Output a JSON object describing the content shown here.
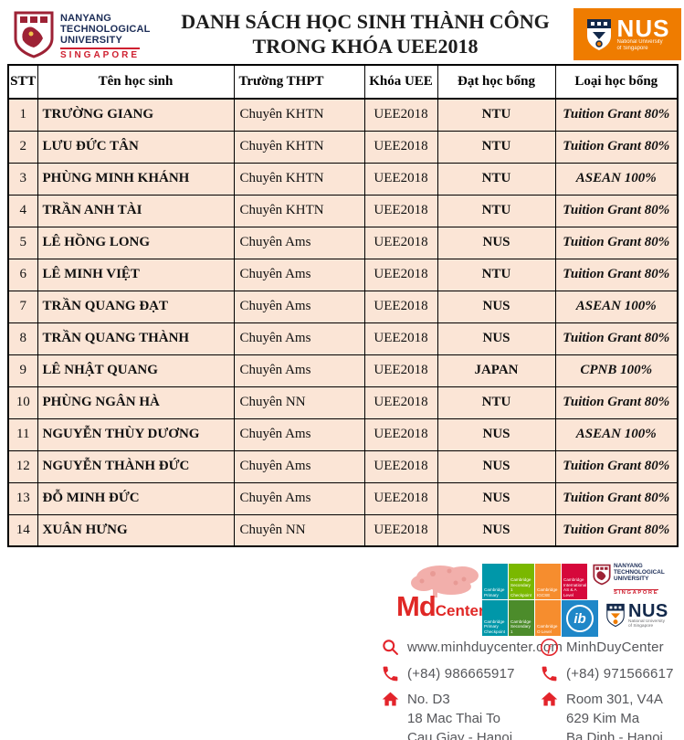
{
  "header": {
    "ntu_logo": {
      "line1": "NANYANG",
      "line2": "TECHNOLOGICAL",
      "line3": "UNIVERSITY",
      "country": "SINGAPORE"
    },
    "title_line1": "DANH SÁCH HỌC SINH THÀNH CÔNG",
    "title_line2": "TRONG KHÓA UEE2018",
    "nus_logo": {
      "acronym": "NUS",
      "subtitle_line1": "National University",
      "subtitle_line2": "of Singapore"
    }
  },
  "table": {
    "columns": [
      "STT",
      "Tên học sinh",
      "Trường THPT",
      "Khóa UEE",
      "Đạt học bổng",
      "Loại học bổng"
    ],
    "rows": [
      [
        "1",
        "TRƯỜNG GIANG",
        "Chuyên KHTN",
        "UEE2018",
        "NTU",
        "Tuition Grant 80%"
      ],
      [
        "2",
        "LƯU ĐỨC TÂN",
        "Chuyên KHTN",
        "UEE2018",
        "NTU",
        "Tuition Grant 80%"
      ],
      [
        "3",
        "PHÙNG MINH KHÁNH",
        "Chuyên KHTN",
        "UEE2018",
        "NTU",
        "ASEAN 100%"
      ],
      [
        "4",
        "TRẦN ANH TÀI",
        "Chuyên KHTN",
        "UEE2018",
        "NTU",
        "Tuition Grant 80%"
      ],
      [
        "5",
        "LÊ HỒNG LONG",
        "Chuyên Ams",
        "UEE2018",
        "NUS",
        "Tuition Grant 80%"
      ],
      [
        "6",
        "LÊ MINH VIỆT",
        "Chuyên Ams",
        "UEE2018",
        "NTU",
        "Tuition Grant 80%"
      ],
      [
        "7",
        "TRẦN QUANG ĐẠT",
        "Chuyên Ams",
        "UEE2018",
        "NUS",
        "ASEAN 100%"
      ],
      [
        "8",
        "TRẦN QUANG THÀNH",
        "Chuyên Ams",
        "UEE2018",
        "NUS",
        "Tuition Grant 80%"
      ],
      [
        "9",
        "LÊ NHẬT QUANG",
        "Chuyên Ams",
        "UEE2018",
        "JAPAN",
        "CPNB 100%"
      ],
      [
        "10",
        "PHÙNG NGÂN HÀ",
        "Chuyên NN",
        "UEE2018",
        "NTU",
        "Tuition Grant 80%"
      ],
      [
        "11",
        "NGUYỄN THÙY DƯƠNG",
        "Chuyên Ams",
        "UEE2018",
        "NUS",
        "ASEAN 100%"
      ],
      [
        "12",
        "NGUYỄN THÀNH ĐỨC",
        "Chuyên Ams",
        "UEE2018",
        "NUS",
        "Tuition Grant 80%"
      ],
      [
        "13",
        "ĐỖ MINH ĐỨC",
        "Chuyên Ams",
        "UEE2018",
        "NUS",
        "Tuition Grant 80%"
      ],
      [
        "14",
        "XUÂN HƯNG",
        "Chuyên NN",
        "UEE2018",
        "NUS",
        "Tuition Grant 80%"
      ]
    ]
  },
  "footer": {
    "mdcenter": {
      "name_big": "Md",
      "name_small": "Center"
    },
    "badges_row1": [
      {
        "label": "Cambridge\nPrimary"
      },
      {
        "label": "Cambridge\nSecondary 1\nCheckpoint"
      },
      {
        "label": "Cambridge\nIGCSE"
      },
      {
        "label": "Cambridge\nInternational\nAS & A Level"
      }
    ],
    "badges_row2": [
      {
        "label": "Cambridge\nPrimary\nCheckpoint"
      },
      {
        "label": "Cambridge\nSecondary 1"
      },
      {
        "label": "Cambridge\nO Level"
      }
    ],
    "ib_label": "ib",
    "ntu_mini": {
      "line1": "NANYANG",
      "line2": "TECHNOLOGICAL",
      "line3": "UNIVERSITY",
      "country": "SINGAPORE"
    },
    "nus_mini": {
      "acronym": "NUS",
      "subtitle_line1": "National University",
      "subtitle_line2": "of Singapore"
    },
    "contacts": {
      "website": "www.minhduycenter.com",
      "facebook": "MinhDuyCenter",
      "facebook_icon_letter": "f",
      "phone_left": "(+84) 986665917",
      "phone_right": "(+84) 971566617",
      "address_left": [
        "No. D3",
        "18 Mac Thai To",
        "Cau Giay - Hanoi"
      ],
      "address_right": [
        "Room 301, V4A",
        "629 Kim Ma",
        "Ba Dinh - Hanoi"
      ]
    }
  },
  "colors": {
    "row_background": "#fbe5d6",
    "table_border": "#000000",
    "nus_orange": "#ef7c00",
    "ntu_navy": "#1c2d57",
    "ntu_red": "#cf2030",
    "mdcenter_red": "#e02826",
    "contact_icon_red": "#e3242b",
    "contact_text_gray": "#55565a",
    "cambridge_teal": "#0097a9",
    "cambridge_green": "#7ab800",
    "cambridge_orange": "#f68d2e",
    "cambridge_crimson": "#d6083b",
    "cambridge_dark_green": "#4c8c2b",
    "ib_blue": "#1f87c8"
  }
}
